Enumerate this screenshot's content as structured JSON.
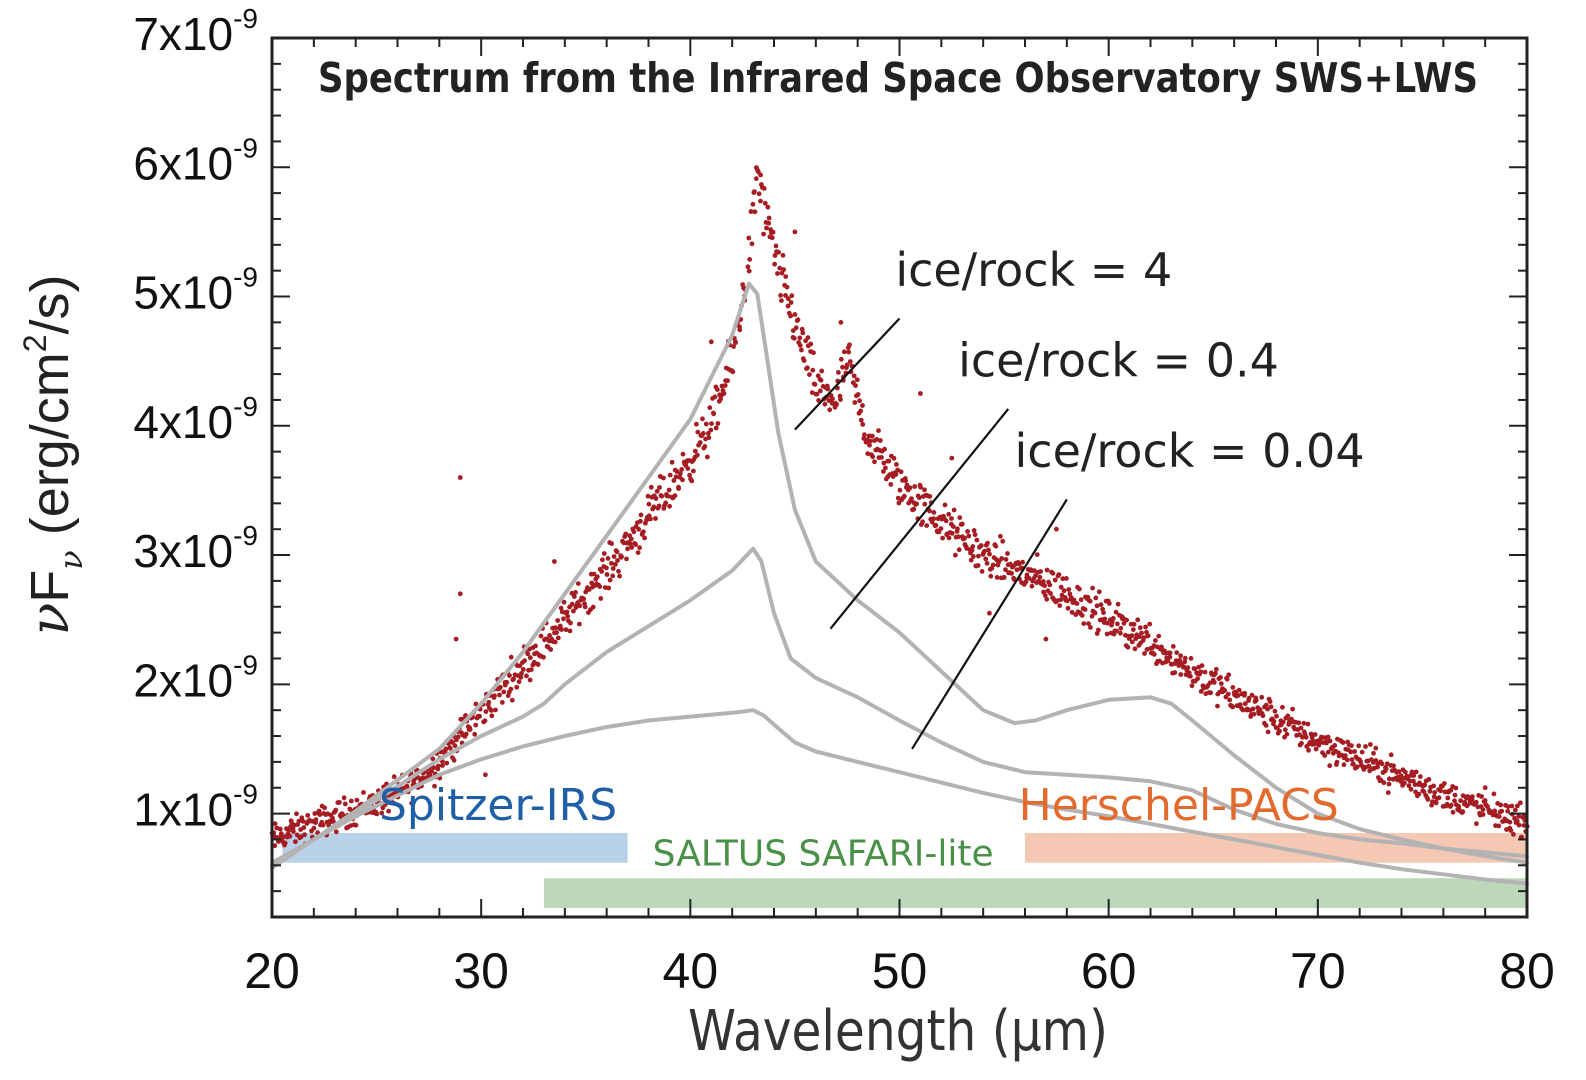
{
  "chart_data": {
    "type": "scatter",
    "title": "Spectrum from the Infrared Space Observatory SWS+LWS",
    "xlabel": "Wavelength (μm)",
    "ylabel": {
      "prefix": "ν",
      "main": "F",
      "sub": "ν",
      "unit_start": " (erg/cm",
      "unit_sup": "2",
      "unit_end": "/s)"
    },
    "xlim": [
      20,
      80
    ],
    "ylim": [
      2e-10,
      7e-09
    ],
    "xticks": [
      {
        "v": 20,
        "label": "20"
      },
      {
        "v": 30,
        "label": "30"
      },
      {
        "v": 40,
        "label": "40"
      },
      {
        "v": 50,
        "label": "50"
      },
      {
        "v": 60,
        "label": "60"
      },
      {
        "v": 70,
        "label": "70"
      },
      {
        "v": 80,
        "label": "80"
      }
    ],
    "yticks": [
      {
        "v": 1e-09,
        "base": "1x10",
        "exp": "-9"
      },
      {
        "v": 2e-09,
        "base": "2x10",
        "exp": "-9"
      },
      {
        "v": 3e-09,
        "base": "3x10",
        "exp": "-9"
      },
      {
        "v": 4e-09,
        "base": "4x10",
        "exp": "-9"
      },
      {
        "v": 5e-09,
        "base": "5x10",
        "exp": "-9"
      },
      {
        "v": 6e-09,
        "base": "6x10",
        "exp": "-9"
      },
      {
        "v": 7e-09,
        "base": "7x10",
        "exp": "-9"
      }
    ],
    "observed_spectrum": {
      "name": "ISO SWS+LWS spectrum",
      "color": "#a51d23",
      "x": [
        20.0,
        22.0,
        24.0,
        26.0,
        27.5,
        29.0,
        30.5,
        32.0,
        33.5,
        35.0,
        36.5,
        38.0,
        39.5,
        41.0,
        42.0,
        42.8,
        43.2,
        43.6,
        44.2,
        45.0,
        46.0,
        47.0,
        47.5,
        48.5,
        50.0,
        52.0,
        54.0,
        56.0,
        58.0,
        60.0,
        62.0,
        64.0,
        66.0,
        68.0,
        70.0,
        72.0,
        74.0,
        76.0,
        78.0,
        80.0
      ],
      "y": [
        8e-10,
        9.2e-10,
        1.03e-09,
        1.15e-09,
        1.32e-09,
        1.6e-09,
        1.88e-09,
        2.15e-09,
        2.4e-09,
        2.7e-09,
        2.98e-09,
        3.3e-09,
        3.62e-09,
        4e-09,
        4.5e-09,
        5.3e-09,
        5.95e-09,
        5.6e-09,
        5.2e-09,
        4.8e-09,
        4.3e-09,
        4.2e-09,
        4.5e-09,
        3.9e-09,
        3.55e-09,
        3.25e-09,
        3e-09,
        2.85e-09,
        2.7e-09,
        2.5e-09,
        2.33e-09,
        2.1e-09,
        1.9e-09,
        1.73e-09,
        1.56e-09,
        1.42e-09,
        1.28e-09,
        1.14e-09,
        1.03e-09,
        9.3e-10
      ],
      "outliers": [
        [
          29.0,
          3.6e-09
        ],
        [
          29.0,
          2.7e-09
        ],
        [
          28.8,
          2.35e-09
        ],
        [
          30.2,
          1.3e-09
        ],
        [
          47.2,
          4.8e-09
        ],
        [
          45.0,
          5.5e-09
        ],
        [
          51.0,
          4.25e-09
        ],
        [
          52.5,
          3.75e-09
        ],
        [
          57.0,
          2.35e-09
        ],
        [
          54.3,
          2.55e-09
        ],
        [
          78.0,
          1.2e-09
        ],
        [
          73.0,
          1.4e-09
        ],
        [
          41.0,
          4.65e-09
        ],
        [
          33.5,
          2.95e-09
        ],
        [
          57.5,
          3.2e-09
        ]
      ]
    },
    "model_series": [
      {
        "name": "ice/rock = 4",
        "label": "ice/rock = 4",
        "color": "#b3b3b3",
        "x": [
          20.0,
          24.0,
          28.0,
          30.0,
          32.0,
          34.0,
          36.0,
          38.0,
          40.0,
          42.0,
          42.8,
          43.2,
          43.6,
          44.2,
          45.0,
          46.0,
          48.0,
          50.0,
          52.0,
          54.0,
          55.5,
          56.5,
          58.0,
          60.0,
          62.0,
          63.0,
          64.0,
          66.0,
          68.0,
          70.0,
          72.0,
          74.0,
          76.0,
          78.0,
          80.0
        ],
        "y": [
          5.8e-10,
          1.02e-09,
          1.5e-09,
          1.85e-09,
          2.25e-09,
          2.7e-09,
          3.15e-09,
          3.6e-09,
          4.05e-09,
          4.7e-09,
          5.1e-09,
          5.02e-09,
          4.6e-09,
          3.95e-09,
          3.35e-09,
          2.95e-09,
          2.65e-09,
          2.4e-09,
          2.1e-09,
          1.8e-09,
          1.7e-09,
          1.72e-09,
          1.8e-09,
          1.88e-09,
          1.9e-09,
          1.85e-09,
          1.72e-09,
          1.45e-09,
          1.2e-09,
          1e-09,
          8.8e-10,
          8e-10,
          7.3e-10,
          6.7e-10,
          6.2e-10
        ]
      },
      {
        "name": "ice/rock = 0.4",
        "label": "ice/rock = 0.4",
        "color": "#b3b3b3",
        "x": [
          20.0,
          24.0,
          28.0,
          30.0,
          32.0,
          33.0,
          34.0,
          36.0,
          38.0,
          40.0,
          42.0,
          43.0,
          43.4,
          44.0,
          44.8,
          46.0,
          48.0,
          50.0,
          52.0,
          54.0,
          56.0,
          58.0,
          60.0,
          62.0,
          64.0,
          66.0,
          68.0,
          70.0,
          72.0,
          74.0,
          76.0,
          78.0,
          80.0
        ],
        "y": [
          6e-10,
          1e-09,
          1.42e-09,
          1.6e-09,
          1.75e-09,
          1.85e-09,
          2e-09,
          2.25e-09,
          2.45e-09,
          2.65e-09,
          2.88e-09,
          3.05e-09,
          2.95e-09,
          2.55e-09,
          2.2e-09,
          2.05e-09,
          1.9e-09,
          1.72e-09,
          1.55e-09,
          1.4e-09,
          1.32e-09,
          1.3e-09,
          1.28e-09,
          1.25e-09,
          1.18e-09,
          1.03e-09,
          9.2e-10,
          8.5e-10,
          8e-10,
          7.7e-10,
          7.3e-10,
          7e-10,
          6.7e-10
        ]
      },
      {
        "name": "ice/rock = 0.04",
        "label": "ice/rock = 0.04",
        "color": "#b3b3b3",
        "x": [
          20.0,
          24.0,
          28.0,
          30.0,
          32.0,
          34.0,
          36.0,
          38.0,
          40.0,
          42.0,
          43.0,
          43.5,
          44.2,
          45.0,
          46.0,
          48.0,
          50.0,
          52.0,
          54.0,
          56.0,
          58.0,
          60.0,
          62.0,
          64.0,
          66.0,
          68.0,
          70.0,
          72.0,
          74.0,
          76.0,
          78.0,
          80.0
        ],
        "y": [
          6.2e-10,
          9.8e-10,
          1.3e-09,
          1.42e-09,
          1.52e-09,
          1.6e-09,
          1.67e-09,
          1.72e-09,
          1.75e-09,
          1.78e-09,
          1.8e-09,
          1.76e-09,
          1.66e-09,
          1.55e-09,
          1.48e-09,
          1.4e-09,
          1.32e-09,
          1.24e-09,
          1.16e-09,
          1.09e-09,
          1.03e-09,
          9.8e-10,
          9.2e-10,
          8.6e-10,
          8e-10,
          7.4e-10,
          6.8e-10,
          6.2e-10,
          5.7e-10,
          5.3e-10,
          4.9e-10,
          4.6e-10
        ]
      }
    ],
    "annotations": [
      {
        "text": "ice/rock = 4",
        "label_at": [
          49.8,
          5.08e-09
        ],
        "line_from": [
          45.0,
          3.97e-09
        ],
        "line_to": [
          50.0,
          4.83e-09
        ]
      },
      {
        "text": "ice/rock = 0.4",
        "label_at": [
          52.8,
          4.38e-09
        ],
        "line_from": [
          46.7,
          2.43e-09
        ],
        "line_to": [
          55.2,
          4.13e-09
        ]
      },
      {
        "text": "ice/rock = 0.04",
        "label_at": [
          55.5,
          3.68e-09
        ],
        "line_from": [
          50.6,
          1.5e-09
        ],
        "line_to": [
          58.0,
          3.43e-09
        ]
      }
    ],
    "bands": [
      {
        "name": "Spitzer-IRS",
        "label": "Spitzer-IRS",
        "x_range": [
          20.5,
          37.0
        ],
        "y_range": [
          6.2e-10,
          8.5e-10
        ],
        "color": "#b3cde6",
        "text_color": "#1f5fa8",
        "label_anchor": "end",
        "label_at": [
          36.5,
          9.5e-10
        ]
      },
      {
        "name": "SALTUS SAFARI-lite",
        "label": "SALTUS SAFARI-lite",
        "x_range": [
          33.0,
          80.0
        ],
        "y_range": [
          2.7e-10,
          5e-10
        ],
        "color": "#b7d4b4",
        "text_color": "#4a9148",
        "label_anchor": "start",
        "label_at": [
          38.2,
          6e-10
        ]
      },
      {
        "name": "Herschel-PACS",
        "label": "Herschel-PACS",
        "x_range": [
          56.0,
          80.0
        ],
        "y_range": [
          6.2e-10,
          8.5e-10
        ],
        "color": "#f3c3ad",
        "text_color": "#e26a2c",
        "label_anchor": "end",
        "label_at": [
          71.0,
          9.5e-10
        ]
      }
    ],
    "grid": false,
    "legend": "none"
  }
}
